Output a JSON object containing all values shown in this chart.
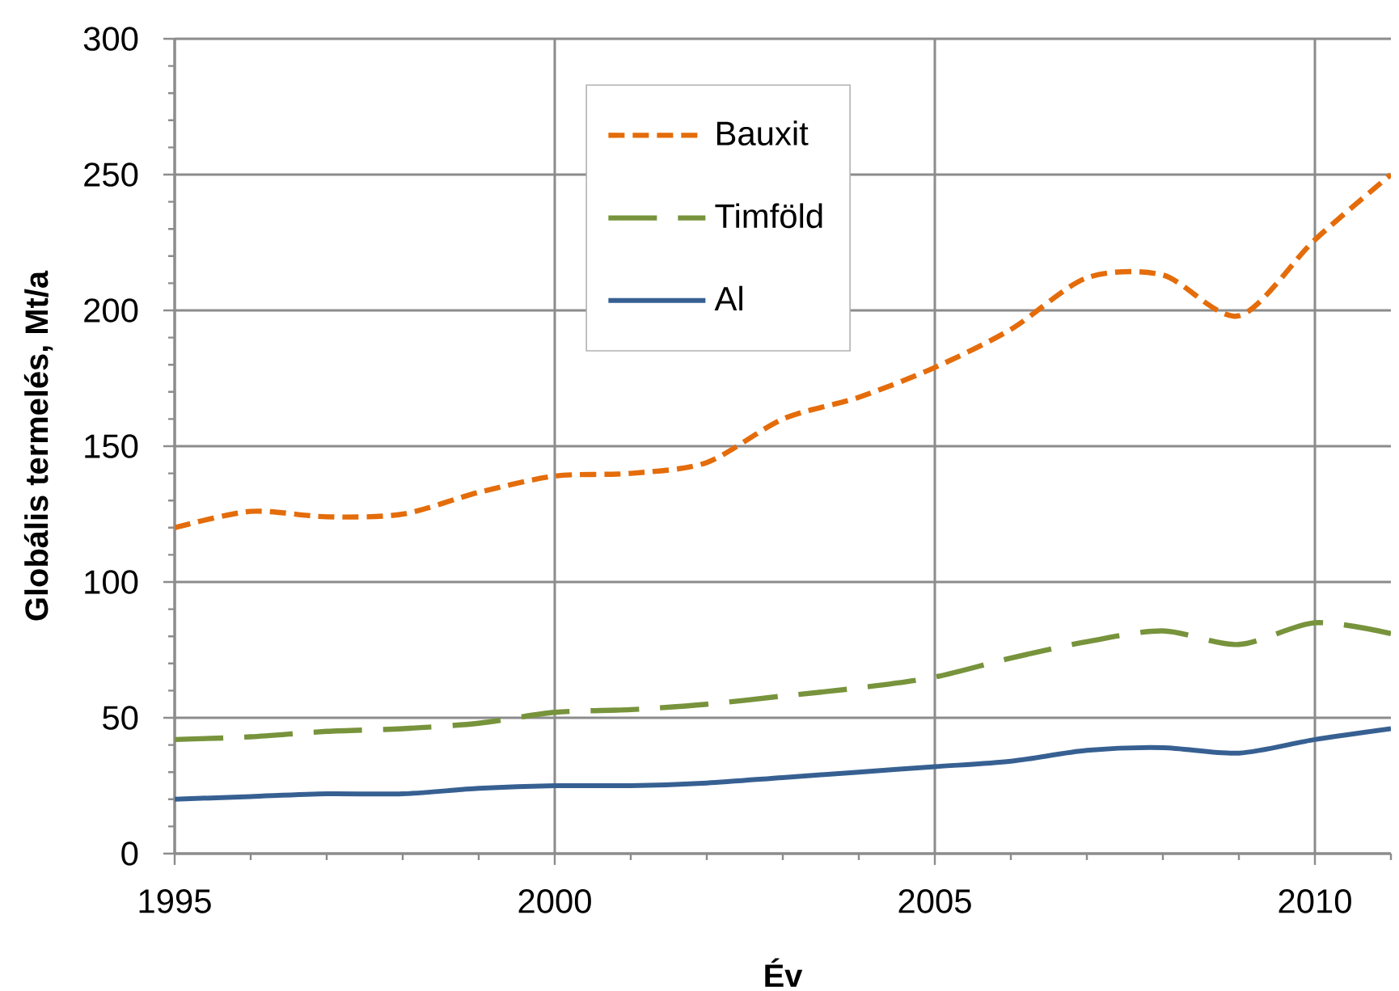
{
  "chart_data": {
    "type": "line",
    "xlabel": "Év",
    "ylabel": "Globális termelés, Mt/a",
    "x": [
      1995,
      1996,
      1997,
      1998,
      1999,
      2000,
      2001,
      2002,
      2003,
      2004,
      2005,
      2006,
      2007,
      2008,
      2009,
      2010,
      2011
    ],
    "series": [
      {
        "name": "Bauxit",
        "color": "#e46c0a",
        "line_style": "dotted",
        "values": [
          120,
          126,
          124,
          125,
          133,
          139,
          140,
          144,
          160,
          168,
          179,
          193,
          212,
          213,
          198,
          226,
          250
        ]
      },
      {
        "name": "Timföld",
        "color": "#77933c",
        "line_style": "dashed",
        "values": [
          42,
          43,
          45,
          46,
          48,
          52,
          53,
          55,
          58,
          61,
          65,
          72,
          78,
          82,
          77,
          85,
          81
        ]
      },
      {
        "name": "Al",
        "color": "#376092",
        "line_style": "solid",
        "values": [
          20,
          21,
          22,
          22,
          24,
          25,
          25,
          26,
          28,
          30,
          32,
          34,
          38,
          39,
          37,
          42,
          46
        ]
      }
    ],
    "xlim": [
      1995,
      2011
    ],
    "ylim": [
      0,
      300
    ],
    "xticks": [
      1995,
      {
        "value": 1996,
        "label": null
      },
      {
        "value": 1997,
        "label": null
      },
      {
        "value": 1998,
        "label": null
      },
      {
        "value": 1999,
        "label": null
      },
      2000,
      {
        "value": 2001,
        "label": null
      },
      {
        "value": 2002,
        "label": null
      },
      {
        "value": 2003,
        "label": null
      },
      {
        "value": 2004,
        "label": null
      },
      2005,
      {
        "value": 2006,
        "label": null
      },
      {
        "value": 2007,
        "label": null
      },
      {
        "value": 2008,
        "label": null
      },
      {
        "value": 2009,
        "label": null
      },
      2010,
      {
        "value": 2011,
        "label": null
      }
    ],
    "yticks": [
      0,
      {
        "value": 10,
        "label": null
      },
      {
        "value": 20,
        "label": null
      },
      {
        "value": 30,
        "label": null
      },
      {
        "value": 40,
        "label": null
      },
      50,
      {
        "value": 60,
        "label": null
      },
      {
        "value": 70,
        "label": null
      },
      {
        "value": 80,
        "label": null
      },
      {
        "value": 90,
        "label": null
      },
      100,
      {
        "value": 110,
        "label": null
      },
      {
        "value": 120,
        "label": null
      },
      {
        "value": 130,
        "label": null
      },
      {
        "value": 140,
        "label": null
      },
      150,
      {
        "value": 160,
        "label": null
      },
      {
        "value": 170,
        "label": null
      },
      {
        "value": 180,
        "label": null
      },
      {
        "value": 190,
        "label": null
      },
      200,
      {
        "value": 210,
        "label": null
      },
      {
        "value": 220,
        "label": null
      },
      {
        "value": 230,
        "label": null
      },
      {
        "value": 240,
        "label": null
      },
      250,
      {
        "value": 260,
        "label": null
      },
      {
        "value": 270,
        "label": null
      },
      {
        "value": 280,
        "label": null
      },
      {
        "value": 290,
        "label": null
      },
      300
    ],
    "grid": true,
    "legend": "top",
    "marker": "none"
  }
}
